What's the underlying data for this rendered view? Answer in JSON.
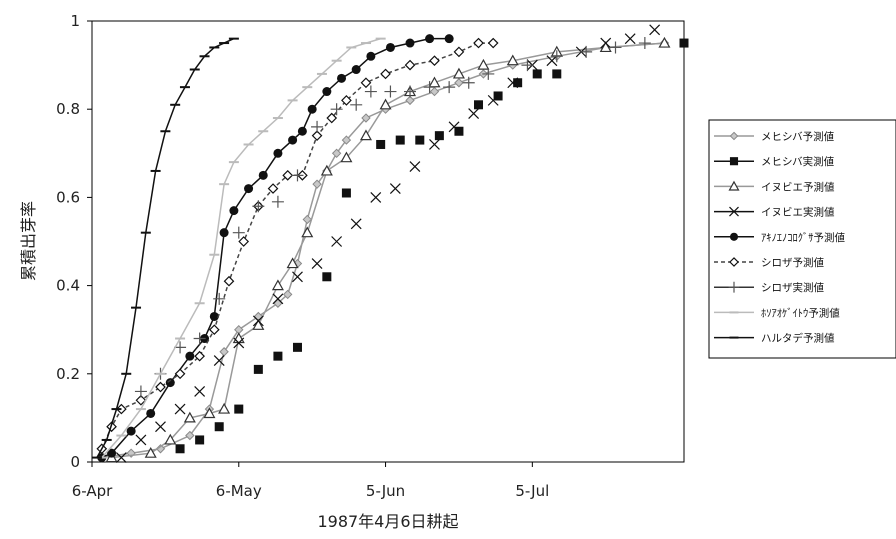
{
  "chart_data": {
    "type": "scatter",
    "xlabel": "1987年4月6日耕起",
    "ylabel": "累積出芽率",
    "x_ticks": [
      "6-Apr",
      "6-May",
      "5-Jun",
      "5-Jul"
    ],
    "xlim": [
      "1987-04-06",
      "1987-08-05"
    ],
    "ylim": [
      0,
      1
    ],
    "y_ticks": [
      "0",
      "0.2",
      "0.4",
      "0.6",
      "0.8",
      "1"
    ],
    "grid": false,
    "legend_position": "right",
    "series": [
      {
        "name": "メヒシバ予測値",
        "color": "#999999",
        "marker": "diamond",
        "style": "solid",
        "x": [
          "1987-04-08",
          "1987-04-14",
          "1987-04-20",
          "1987-04-26",
          "1987-04-30",
          "1987-05-03",
          "1987-05-06",
          "1987-05-10",
          "1987-05-14",
          "1987-05-16",
          "1987-05-18",
          "1987-05-20",
          "1987-05-22",
          "1987-05-24",
          "1987-05-26",
          "1987-05-28",
          "1987-06-01",
          "1987-06-05",
          "1987-06-10",
          "1987-06-15",
          "1987-06-20",
          "1987-06-25",
          "1987-07-01",
          "1987-07-10",
          "1987-07-20",
          "1987-08-01"
        ],
        "y": [
          0.01,
          0.02,
          0.03,
          0.06,
          0.12,
          0.25,
          0.3,
          0.33,
          0.36,
          0.38,
          0.45,
          0.55,
          0.63,
          0.66,
          0.7,
          0.73,
          0.78,
          0.8,
          0.82,
          0.84,
          0.86,
          0.88,
          0.9,
          0.92,
          0.94,
          0.95
        ]
      },
      {
        "name": "メヒシバ実測値",
        "color": "#111111",
        "marker": "square",
        "style": "none",
        "x": [
          "1987-04-24",
          "1987-04-28",
          "1987-05-02",
          "1987-05-06",
          "1987-05-10",
          "1987-05-14",
          "1987-05-18",
          "1987-05-24",
          "1987-05-28",
          "1987-06-04",
          "1987-06-08",
          "1987-06-12",
          "1987-06-16",
          "1987-06-20",
          "1987-06-24",
          "1987-06-28",
          "1987-07-02",
          "1987-07-06",
          "1987-07-10",
          "1987-08-05"
        ],
        "y": [
          0.03,
          0.05,
          0.08,
          0.12,
          0.21,
          0.24,
          0.26,
          0.42,
          0.61,
          0.72,
          0.73,
          0.73,
          0.74,
          0.75,
          0.81,
          0.83,
          0.86,
          0.88,
          0.88,
          0.95
        ]
      },
      {
        "name": "イヌビエ予測値",
        "color": "#999999",
        "marker": "triangle",
        "style": "solid",
        "x": [
          "1987-04-10",
          "1987-04-18",
          "1987-04-22",
          "1987-04-26",
          "1987-04-30",
          "1987-05-03",
          "1987-05-06",
          "1987-05-10",
          "1987-05-14",
          "1987-05-17",
          "1987-05-20",
          "1987-05-24",
          "1987-05-28",
          "1987-06-01",
          "1987-06-05",
          "1987-06-10",
          "1987-06-15",
          "1987-06-20",
          "1987-06-25",
          "1987-07-01",
          "1987-07-10",
          "1987-07-20",
          "1987-08-01"
        ],
        "y": [
          0.01,
          0.02,
          0.05,
          0.1,
          0.11,
          0.12,
          0.28,
          0.31,
          0.4,
          0.45,
          0.52,
          0.66,
          0.69,
          0.74,
          0.81,
          0.84,
          0.86,
          0.88,
          0.9,
          0.91,
          0.93,
          0.94,
          0.95
        ]
      },
      {
        "name": "イヌビエ実測値",
        "color": "#111111",
        "marker": "x",
        "style": "none",
        "x": [
          "1987-04-12",
          "1987-04-16",
          "1987-04-20",
          "1987-04-24",
          "1987-04-28",
          "1987-05-02",
          "1987-05-06",
          "1987-05-10",
          "1987-05-14",
          "1987-05-18",
          "1987-05-22",
          "1987-05-26",
          "1987-05-30",
          "1987-06-03",
          "1987-06-07",
          "1987-06-11",
          "1987-06-15",
          "1987-06-19",
          "1987-06-23",
          "1987-06-27",
          "1987-07-01",
          "1987-07-05",
          "1987-07-09",
          "1987-07-15",
          "1987-07-20",
          "1987-07-25",
          "1987-07-30"
        ],
        "y": [
          0.01,
          0.05,
          0.08,
          0.12,
          0.16,
          0.23,
          0.27,
          0.32,
          0.37,
          0.42,
          0.45,
          0.5,
          0.54,
          0.6,
          0.62,
          0.67,
          0.72,
          0.76,
          0.79,
          0.82,
          0.86,
          0.9,
          0.91,
          0.93,
          0.95,
          0.96,
          0.98
        ]
      },
      {
        "name": "ｱｷﾉｴﾉｺﾛｸﾞｻ予測値",
        "color": "#111111",
        "marker": "circle",
        "style": "solid",
        "x": [
          "1987-04-08",
          "1987-04-10",
          "1987-04-14",
          "1987-04-18",
          "1987-04-22",
          "1987-04-26",
          "1987-04-29",
          "1987-05-01",
          "1987-05-03",
          "1987-05-05",
          "1987-05-08",
          "1987-05-11",
          "1987-05-14",
          "1987-05-17",
          "1987-05-19",
          "1987-05-21",
          "1987-05-24",
          "1987-05-27",
          "1987-05-30",
          "1987-06-02",
          "1987-06-06",
          "1987-06-10",
          "1987-06-14",
          "1987-06-18"
        ],
        "y": [
          0.01,
          0.02,
          0.07,
          0.11,
          0.18,
          0.24,
          0.28,
          0.33,
          0.52,
          0.57,
          0.62,
          0.65,
          0.7,
          0.73,
          0.75,
          0.8,
          0.84,
          0.87,
          0.89,
          0.92,
          0.94,
          0.95,
          0.96,
          0.96
        ]
      },
      {
        "name": "シロザ予測値",
        "color": "#444444",
        "marker": "diamond-open",
        "style": "dashed",
        "x": [
          "1987-04-08",
          "1987-04-10",
          "1987-04-12",
          "1987-04-16",
          "1987-04-20",
          "1987-04-24",
          "1987-04-28",
          "1987-05-01",
          "1987-05-04",
          "1987-05-07",
          "1987-05-10",
          "1987-05-13",
          "1987-05-16",
          "1987-05-19",
          "1987-05-22",
          "1987-05-25",
          "1987-05-28",
          "1987-06-01",
          "1987-06-05",
          "1987-06-10",
          "1987-06-15",
          "1987-06-20",
          "1987-06-24",
          "1987-06-27"
        ],
        "y": [
          0.03,
          0.08,
          0.12,
          0.14,
          0.17,
          0.2,
          0.24,
          0.3,
          0.41,
          0.5,
          0.58,
          0.62,
          0.65,
          0.65,
          0.74,
          0.78,
          0.82,
          0.86,
          0.88,
          0.9,
          0.91,
          0.93,
          0.95,
          0.95
        ]
      },
      {
        "name": "シロザ実測値",
        "color": "#333333",
        "marker": "plus",
        "style": "none",
        "x": [
          "1987-04-16",
          "1987-04-20",
          "1987-04-24",
          "1987-04-28",
          "1987-05-02",
          "1987-05-06",
          "1987-05-10",
          "1987-05-14",
          "1987-05-18",
          "1987-05-22",
          "1987-05-26",
          "1987-05-30",
          "1987-06-02",
          "1987-06-06",
          "1987-06-10",
          "1987-06-14",
          "1987-06-18",
          "1987-06-22",
          "1987-06-26",
          "1987-07-04",
          "1987-07-10",
          "1987-07-16",
          "1987-07-22",
          "1987-07-28"
        ],
        "y": [
          0.16,
          0.2,
          0.26,
          0.28,
          0.37,
          0.52,
          0.58,
          0.59,
          0.65,
          0.76,
          0.8,
          0.81,
          0.84,
          0.84,
          0.84,
          0.85,
          0.85,
          0.86,
          0.88,
          0.9,
          0.92,
          0.93,
          0.94,
          0.95
        ]
      },
      {
        "name": "ﾎｿｱｵｹﾞｲﾄｳ予測値",
        "color": "#bbbbbb",
        "marker": "dash",
        "style": "solid",
        "x": [
          "1987-04-08",
          "1987-04-12",
          "1987-04-16",
          "1987-04-20",
          "1987-04-24",
          "1987-04-28",
          "1987-05-01",
          "1987-05-03",
          "1987-05-05",
          "1987-05-08",
          "1987-05-11",
          "1987-05-14",
          "1987-05-17",
          "1987-05-20",
          "1987-05-23",
          "1987-05-26",
          "1987-05-29",
          "1987-06-01",
          "1987-06-04"
        ],
        "y": [
          0.01,
          0.06,
          0.12,
          0.2,
          0.28,
          0.36,
          0.47,
          0.63,
          0.68,
          0.72,
          0.75,
          0.78,
          0.82,
          0.85,
          0.88,
          0.91,
          0.94,
          0.95,
          0.96
        ]
      },
      {
        "name": "ハルタデ予測値",
        "color": "#111111",
        "marker": "dash",
        "style": "solid",
        "x": [
          "1987-04-07",
          "1987-04-09",
          "1987-04-11",
          "1987-04-13",
          "1987-04-15",
          "1987-04-17",
          "1987-04-19",
          "1987-04-21",
          "1987-04-23",
          "1987-04-25",
          "1987-04-27",
          "1987-04-29",
          "1987-05-01",
          "1987-05-03",
          "1987-05-05"
        ],
        "y": [
          0.01,
          0.05,
          0.12,
          0.2,
          0.35,
          0.52,
          0.66,
          0.75,
          0.81,
          0.85,
          0.89,
          0.92,
          0.94,
          0.95,
          0.96
        ]
      }
    ]
  }
}
